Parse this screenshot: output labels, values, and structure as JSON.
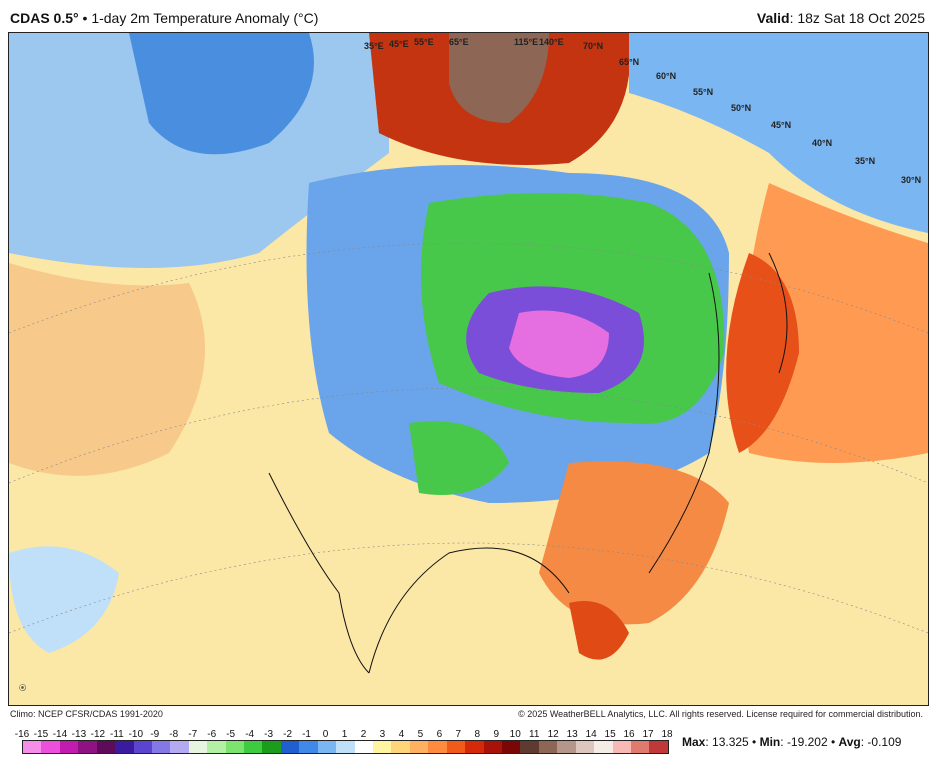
{
  "header": {
    "model": "CDAS 0.5°",
    "title": "1-day 2m Temperature Anomaly (°C)",
    "valid_label": "Valid",
    "valid_value": "18z Sat 18 Oct 2025"
  },
  "map": {
    "grid_labels": [
      "35°E",
      "45°E",
      "55°E",
      "65°E",
      "115°E",
      "140°E",
      "70°N",
      "65°N",
      "60°N",
      "55°N",
      "50°N",
      "45°N",
      "40°N",
      "35°N",
      "30°N"
    ],
    "logo_text": "WeatherBELL"
  },
  "footer": {
    "climo": "Climo: NCEP CFSR/CDAS 1991-2020",
    "copyright": "© 2025 WeatherBELL Analytics, LLC. All rights reserved. License required for commercial distribution."
  },
  "colorbar": {
    "labels": [
      "-16",
      "-15",
      "-14",
      "-13",
      "-12",
      "-11",
      "-10",
      "-9",
      "-8",
      "-7",
      "-6",
      "-5",
      "-4",
      "-3",
      "-2",
      "-1",
      "0",
      "1",
      "2",
      "3",
      "4",
      "5",
      "6",
      "7",
      "8",
      "9",
      "10",
      "11",
      "12",
      "13",
      "14",
      "15",
      "16",
      "17",
      "18"
    ],
    "colors": [
      "#f58ee8",
      "#ec4fdc",
      "#c21bb0",
      "#8f1283",
      "#5e0b5a",
      "#3a1a9e",
      "#5b45d0",
      "#8478e6",
      "#b4aaf2",
      "#e5f5df",
      "#b3f0a6",
      "#7de36f",
      "#3fcb3f",
      "#1b9d1b",
      "#1f5fd0",
      "#3f8ae8",
      "#7ab7f2",
      "#bfe0f8",
      "#ffffff",
      "#fff5a0",
      "#ffd57a",
      "#ffb060",
      "#ff8a40",
      "#f05a1a",
      "#d42a0a",
      "#a81208",
      "#7a0606",
      "#5e3a30",
      "#8e6656",
      "#b6958a",
      "#dcc6be",
      "#f6ece6",
      "#f7b9b3",
      "#e07a6e",
      "#c03838"
    ]
  },
  "stats": {
    "max_label": "Max",
    "max": "13.325",
    "min_label": "Min",
    "min": "-19.202",
    "avg_label": "Avg",
    "avg": "-0.109"
  }
}
